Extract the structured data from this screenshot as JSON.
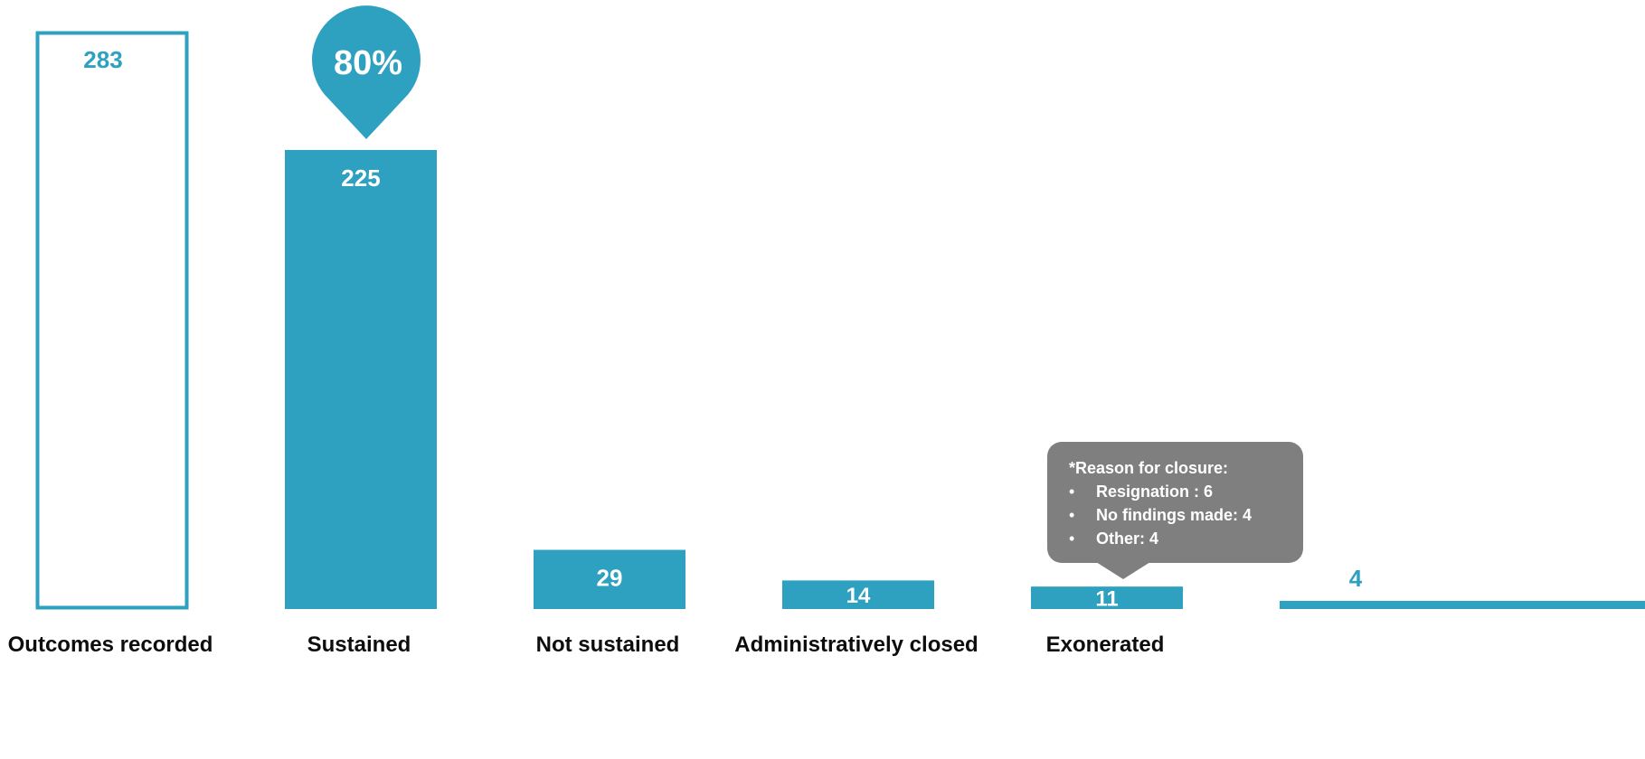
{
  "chart_data": {
    "type": "bar",
    "categories": [
      "Outcomes recorded",
      "Sustained",
      "Not sustained",
      "Administratively closed",
      "Exonerated",
      ""
    ],
    "values": [
      283,
      225,
      29,
      14,
      11,
      4
    ],
    "value_labels": [
      "283",
      "225",
      "29",
      "14",
      "11",
      "4"
    ],
    "title": "",
    "xlabel": "",
    "ylabel": "",
    "ylim": [
      0,
      283
    ],
    "grid": false,
    "legend": "none",
    "colors": {
      "bar": "#2ea1c0",
      "outline": "#2ea1c0",
      "callout": "#2ea1c0",
      "tooltip": "#7f7f7f",
      "label": "#0d0d0d"
    },
    "callout": {
      "text": "80%",
      "category": "Sustained"
    },
    "annotation": {
      "category": "Administratively closed",
      "title": "*Reason for closure:",
      "items": [
        "Resignation : 6",
        "No findings made: 4",
        "Other: 4"
      ]
    }
  }
}
